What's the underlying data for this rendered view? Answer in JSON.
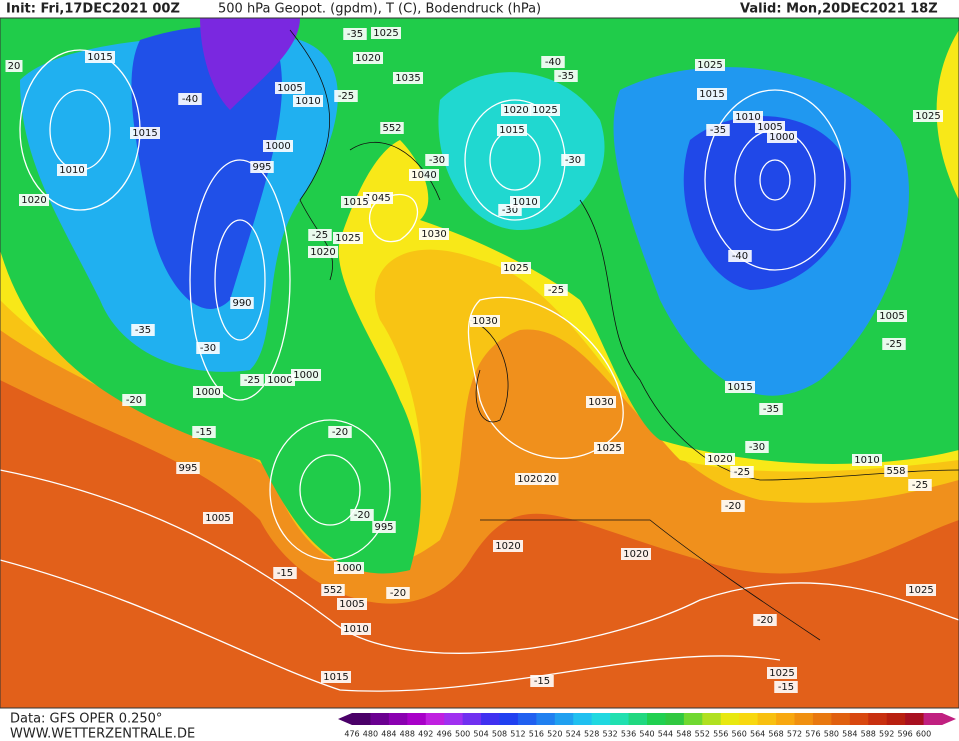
{
  "header": {
    "init": "Init: Fri,17DEC2021 00Z",
    "title": "500 hPa Geopot. (gpdm), T (C), Bodendruck (hPa)",
    "valid": "Valid: Mon,20DEC2021 18Z"
  },
  "footer": {
    "data": "Data: GFS OPER 0.250°",
    "site": "WWW.WETTERZENTRALE.DE"
  },
  "scale": {
    "labels": [
      "476",
      "480",
      "484",
      "488",
      "492",
      "496",
      "500",
      "504",
      "508",
      "512",
      "516",
      "520",
      "524",
      "528",
      "532",
      "536",
      "540",
      "544",
      "548",
      "552",
      "556",
      "560",
      "564",
      "568",
      "572",
      "576",
      "580",
      "584",
      "588",
      "592",
      "596",
      "600"
    ],
    "colors": [
      "#4a0068",
      "#6a0090",
      "#8a00b0",
      "#a800c8",
      "#c020e0",
      "#a030f0",
      "#7030f0",
      "#4030f0",
      "#2040f0",
      "#2060f0",
      "#2080f0",
      "#20a0f0",
      "#20c0f0",
      "#20d8e0",
      "#20e0b0",
      "#20d880",
      "#20d050",
      "#30c840",
      "#70d830",
      "#b0e020",
      "#e8e810",
      "#f8d810",
      "#f8c010",
      "#f8a810",
      "#f09010",
      "#e87810",
      "#e06010",
      "#d84810",
      "#c83010",
      "#b82010",
      "#a81020",
      "#c02080"
    ]
  },
  "map": {
    "labels": [
      "1015",
      "20",
      "-40",
      "1015",
      "1010",
      "1020",
      "1005",
      "1010",
      "-25",
      "1000",
      "995",
      "1025",
      "-35",
      "1020",
      "1035",
      "552",
      "-30",
      "1040",
      "1045",
      "1015",
      "1030",
      "-25",
      "1025",
      "1020",
      "990",
      "-35",
      "-30",
      "-25",
      "1000",
      "1000",
      "1000",
      "-20",
      "-15",
      "995",
      "1005",
      "-20",
      "-20",
      "995",
      "1000",
      "-15",
      "552",
      "1005",
      "-20",
      "1010",
      "1015",
      "1020",
      "1025",
      "1015",
      "-30",
      "-30",
      "1010",
      "1025",
      "-25",
      "1030",
      "1030",
      "1025",
      "1020",
      "20",
      "1020",
      "1020",
      "-20",
      "-15",
      "1025",
      "-15",
      "1025",
      "-40",
      "-35",
      "1025",
      "1015",
      "1010",
      "1005",
      "1000",
      "-35",
      "1025",
      "-40",
      "1005",
      "-25",
      "1015",
      "-35",
      "-30",
      "1020",
      "-25",
      "-20",
      "1010",
      "558",
      "-25"
    ]
  }
}
